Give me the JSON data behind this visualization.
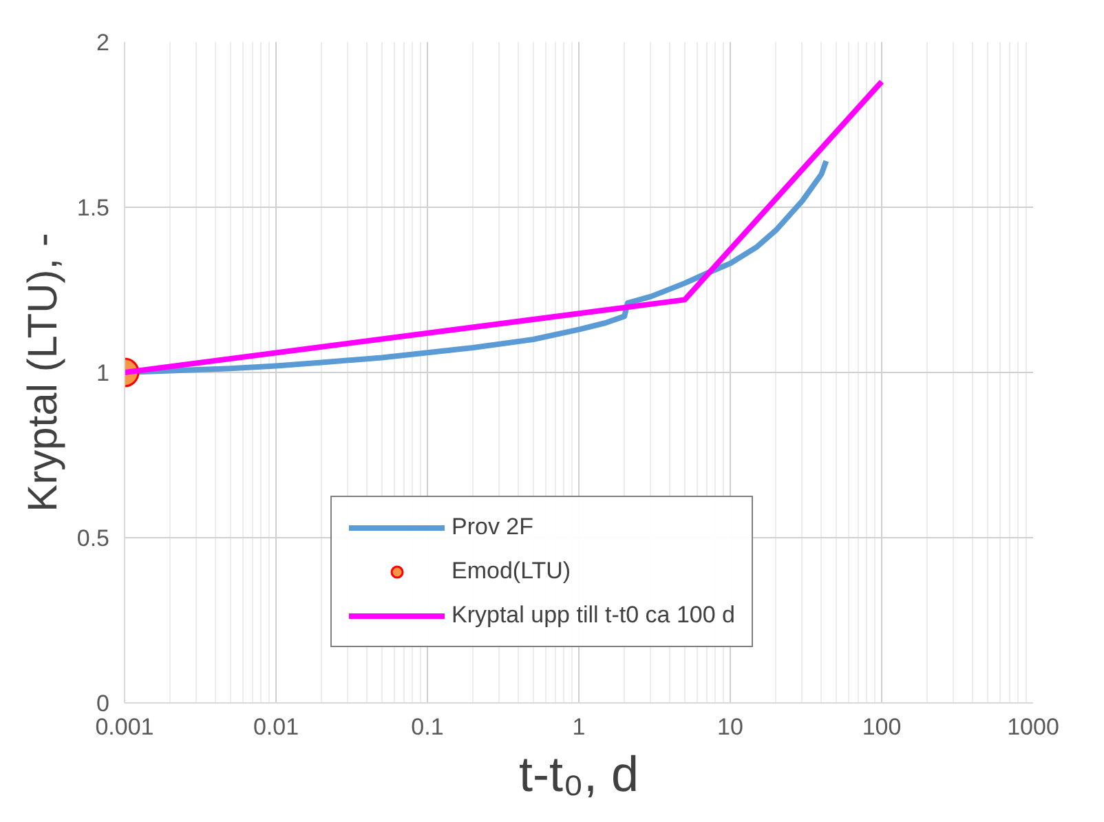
{
  "chart_data": {
    "type": "line",
    "xlabel": "t-t₀, d",
    "ylabel": "Kryptal (LTU), -",
    "log": "x",
    "xlim": [
      0.001,
      1000
    ],
    "xticks": [
      0.001,
      0.01,
      0.1,
      1,
      10,
      100,
      1000
    ],
    "ylim": [
      0,
      2
    ],
    "yticks": [
      0,
      0.5,
      1,
      1.5,
      2
    ],
    "grid": true,
    "legend": "bottom",
    "series": [
      {
        "name": "Prov 2F",
        "color": "#5b9bd5",
        "x": [
          0.001,
          0.002,
          0.005,
          0.01,
          0.02,
          0.05,
          0.1,
          0.2,
          0.5,
          1,
          1.5,
          2,
          2.1,
          3,
          5,
          7,
          10,
          15,
          20,
          30,
          40,
          43
        ],
        "values": [
          1.0,
          1.005,
          1.012,
          1.02,
          1.03,
          1.045,
          1.06,
          1.075,
          1.1,
          1.13,
          1.15,
          1.17,
          1.21,
          1.23,
          1.27,
          1.3,
          1.33,
          1.38,
          1.43,
          1.52,
          1.6,
          1.64
        ]
      },
      {
        "name": "Emod(LTU)",
        "type": "scatter",
        "marker": "circle",
        "color": "#f79646",
        "x": [
          0.001
        ],
        "values": [
          1.0
        ]
      },
      {
        "name": "Kryptal upp till t-t0 ca 100 d",
        "color": "#ff00ff",
        "x": [
          0.001,
          5,
          100
        ],
        "values": [
          1.0,
          1.22,
          1.88
        ]
      }
    ]
  }
}
